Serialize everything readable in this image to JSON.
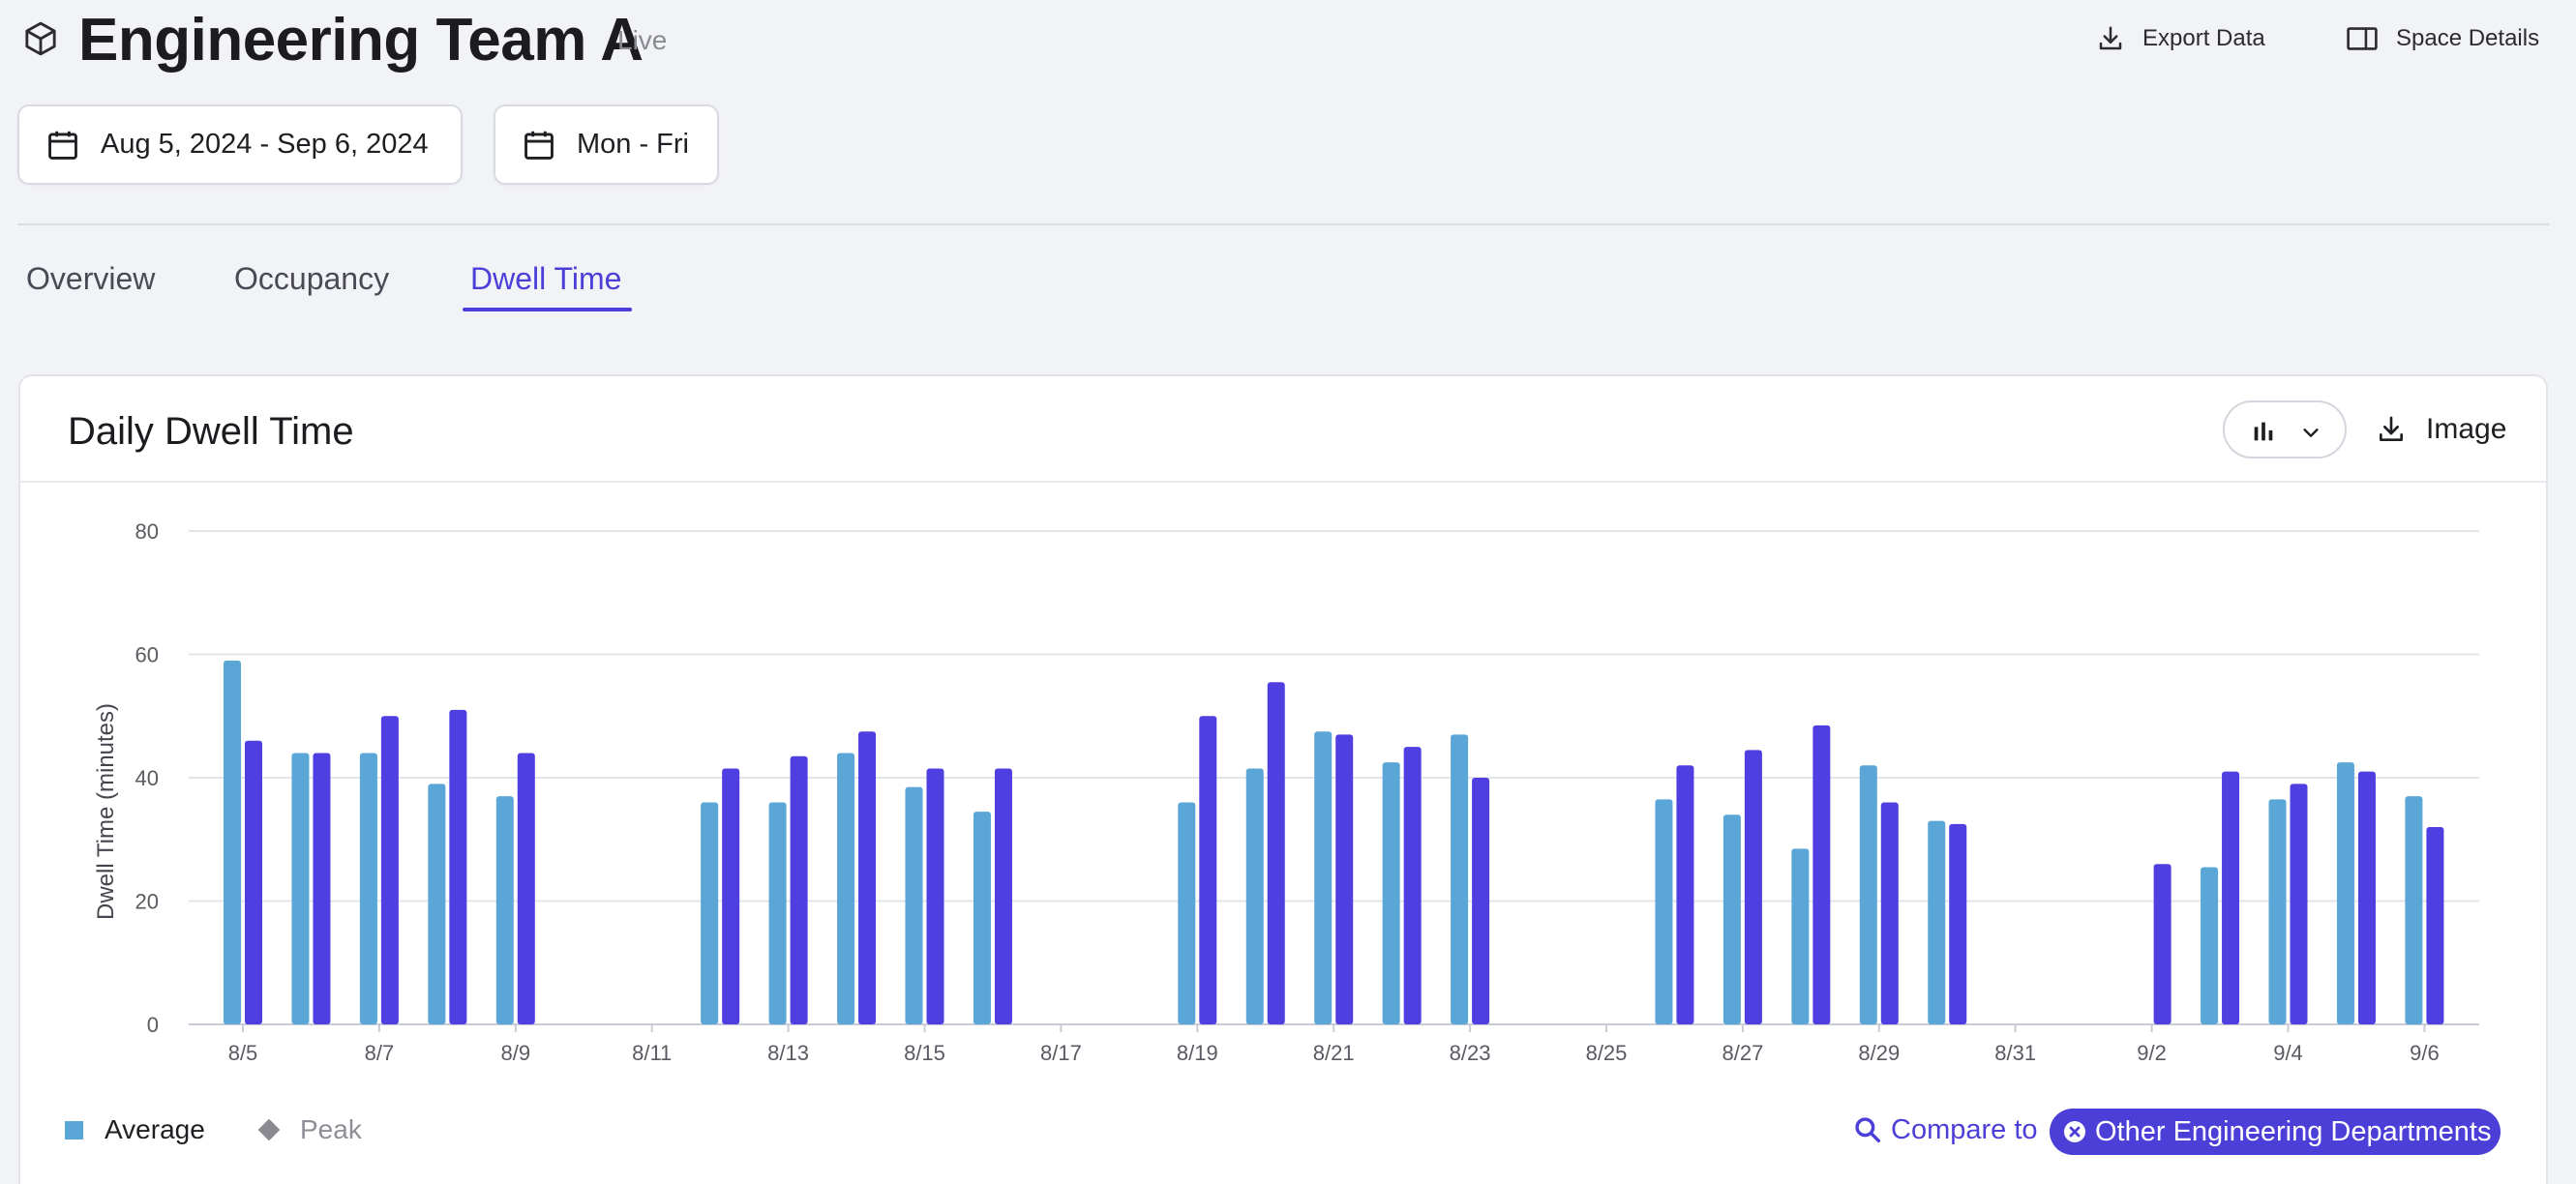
{
  "header": {
    "title": "Engineering Team A",
    "status": "Live",
    "export_label": "Export Data",
    "details_label": "Space Details"
  },
  "filters": {
    "date_range": "Aug 5, 2024 - Sep 6, 2024",
    "days": "Mon - Fri"
  },
  "tabs": [
    {
      "label": "Overview",
      "active": false
    },
    {
      "label": "Occupancy",
      "active": false
    },
    {
      "label": "Dwell Time",
      "active": true
    }
  ],
  "card": {
    "title": "Daily Dwell Time",
    "image_label": "Image",
    "chart_type_icon": "bar-chart-icon"
  },
  "legend": {
    "average": "Average",
    "peak": "Peak"
  },
  "compare": {
    "label": "Compare to",
    "chip": "Other Engineering Departments"
  },
  "colors": {
    "accent": "#4b3fd8",
    "average_bar": "#5aa6d6",
    "peak_bar": "#4f3fe0"
  },
  "chart_data": {
    "type": "bar",
    "ylabel": "Dwell Time (minutes)",
    "ylim": [
      0,
      80
    ],
    "yticks": [
      0,
      20,
      40,
      60,
      80
    ],
    "grid": true,
    "x_ticks": [
      "8/5",
      "8/7",
      "8/9",
      "8/11",
      "8/13",
      "8/15",
      "8/17",
      "8/19",
      "8/21",
      "8/23",
      "8/25",
      "8/27",
      "8/29",
      "8/31",
      "9/2",
      "9/4",
      "9/6"
    ],
    "categories": [
      "8/5",
      "8/6",
      "8/7",
      "8/8",
      "8/9",
      "8/10",
      "8/11",
      "8/12",
      "8/13",
      "8/14",
      "8/15",
      "8/16",
      "8/17",
      "8/18",
      "8/19",
      "8/20",
      "8/21",
      "8/22",
      "8/23",
      "8/24",
      "8/25",
      "8/26",
      "8/27",
      "8/28",
      "8/29",
      "8/30",
      "8/31",
      "9/1",
      "9/2",
      "9/3",
      "9/4",
      "9/5",
      "9/6"
    ],
    "series": [
      {
        "name": "Average",
        "values": [
          59,
          44,
          44,
          39,
          37,
          null,
          null,
          36,
          36,
          44,
          38.5,
          34.5,
          null,
          null,
          36,
          41.5,
          47.5,
          42.5,
          47,
          null,
          null,
          36.5,
          34,
          28.5,
          42,
          33,
          null,
          null,
          null,
          25.5,
          36.5,
          42.5,
          37
        ]
      },
      {
        "name": "Peak",
        "values": [
          46,
          44,
          50,
          51,
          44,
          null,
          null,
          41.5,
          43.5,
          47.5,
          41.5,
          41.5,
          null,
          null,
          50,
          55.5,
          47,
          45,
          40,
          null,
          null,
          42,
          44.5,
          48.5,
          36,
          32.5,
          null,
          null,
          26,
          41,
          39,
          41,
          32
        ]
      }
    ]
  }
}
